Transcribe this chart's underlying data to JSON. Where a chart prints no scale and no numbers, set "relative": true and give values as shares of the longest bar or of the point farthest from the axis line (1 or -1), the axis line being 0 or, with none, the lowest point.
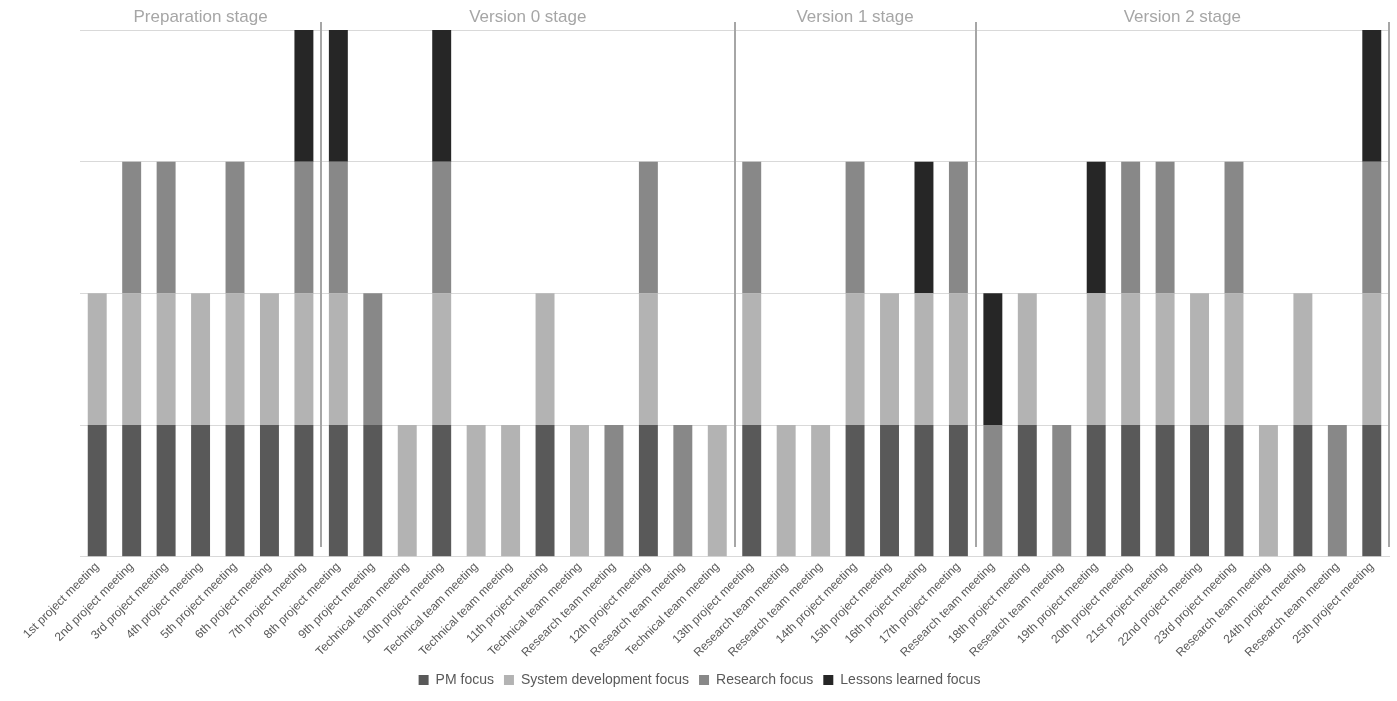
{
  "chart_data": {
    "type": "bar",
    "stacked": true,
    "relative": true,
    "grid": "y",
    "legend": "bottom",
    "categories": [
      "1st project meeting",
      "2nd project meeting",
      "3rd project meeting",
      "4th project meeting",
      "5th project meeting",
      "6th project meeting",
      "7th project meeting",
      "8th project meeting",
      "9th project meeting",
      "Technical team meeting",
      "10th project meeting",
      "Technical team meeting",
      "Technical team meeting",
      "11th project meeting",
      "Technical team meeting",
      "Research team meeting",
      "12th project meeting",
      "Research team meeting",
      "Technical team meeting",
      "13th project meeting",
      "Research team meeting",
      "Research team meeting",
      "14th project meeting",
      "15th project meeting",
      "16th project meeting",
      "17th project meeting",
      "Research team meeting",
      "18th project meeting",
      "Research team meeting",
      "19th project meeting",
      "20th project meeting",
      "21st project meeting",
      "22nd project meeting",
      "23rd project meeting",
      "Research team meeting",
      "24th project meeting",
      "Research team meeting",
      "25th project meeting"
    ],
    "series": [
      {
        "name": "PM focus",
        "color": "#595959",
        "values": [
          0.25,
          0.25,
          0.25,
          0.25,
          0.25,
          0.25,
          0.25,
          0.25,
          0.25,
          null,
          0.25,
          null,
          null,
          0.25,
          null,
          null,
          0.25,
          null,
          null,
          0.25,
          null,
          null,
          0.25,
          0.25,
          0.25,
          0.25,
          null,
          0.25,
          null,
          0.25,
          0.25,
          0.25,
          0.25,
          0.25,
          null,
          0.25,
          null,
          0.25
        ]
      },
      {
        "name": "System development focus",
        "color": "#b3b3b3",
        "values": [
          0.25,
          0.25,
          0.25,
          0.25,
          0.25,
          0.25,
          0.25,
          0.25,
          null,
          0.25,
          0.25,
          0.25,
          0.25,
          0.25,
          0.25,
          null,
          0.25,
          null,
          0.25,
          0.25,
          0.25,
          0.25,
          0.25,
          0.25,
          0.25,
          0.25,
          null,
          0.25,
          null,
          0.25,
          0.25,
          0.25,
          0.25,
          0.25,
          0.25,
          0.25,
          null,
          0.25
        ]
      },
      {
        "name": "Research focus",
        "color": "#888888",
        "values": [
          null,
          0.25,
          0.25,
          null,
          0.25,
          null,
          0.25,
          0.25,
          0.25,
          null,
          0.25,
          null,
          null,
          null,
          null,
          0.25,
          0.25,
          0.25,
          null,
          0.25,
          null,
          null,
          0.25,
          null,
          null,
          0.25,
          0.25,
          null,
          0.25,
          null,
          0.25,
          0.25,
          null,
          0.25,
          null,
          null,
          0.25,
          0.25
        ]
      },
      {
        "name": "Lessons learned focus",
        "color": "#262626",
        "values": [
          null,
          null,
          null,
          null,
          null,
          null,
          0.25,
          0.25,
          null,
          null,
          0.25,
          null,
          null,
          null,
          null,
          null,
          null,
          null,
          null,
          null,
          null,
          null,
          null,
          null,
          0.25,
          null,
          0.25,
          null,
          null,
          0.25,
          null,
          null,
          null,
          null,
          null,
          null,
          null,
          0.25
        ]
      }
    ],
    "annotations": [
      "Preparation stage",
      "Version 0 stage",
      "Version 1 stage",
      "Version 2 stage"
    ]
  }
}
